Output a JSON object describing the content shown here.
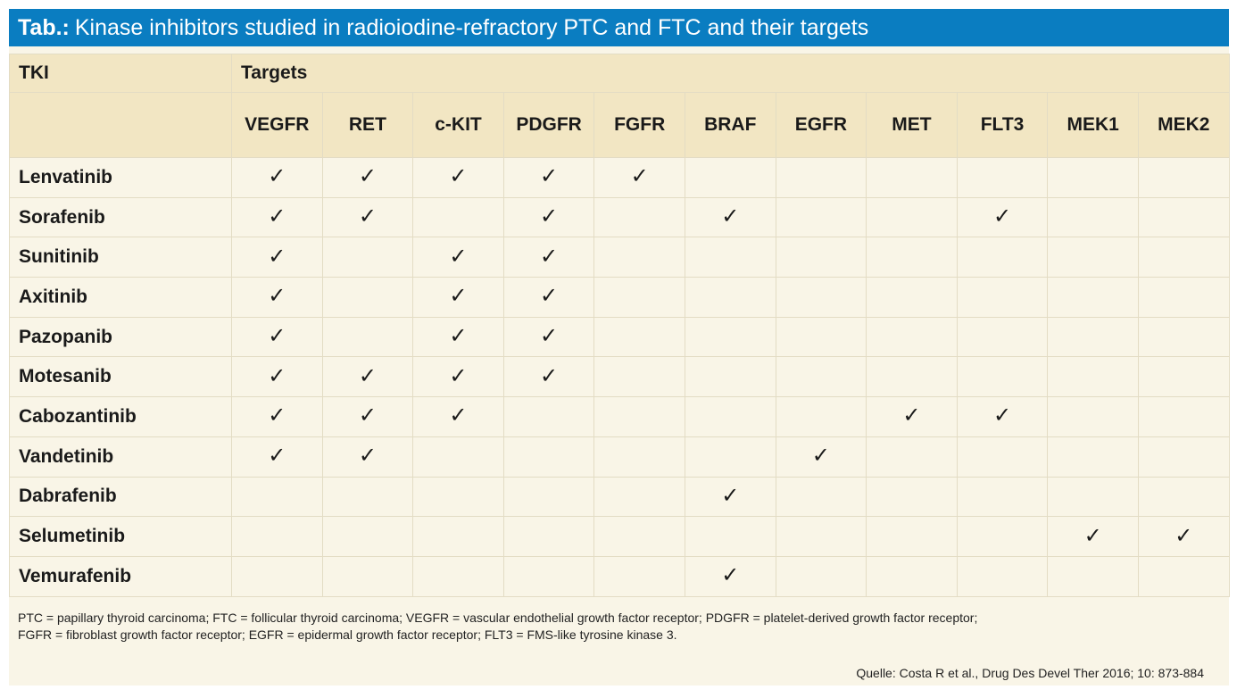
{
  "title": {
    "prefix": "Tab.:",
    "text": "Kinase inhibitors studied in radioiodine-refractory PTC and FTC and their targets"
  },
  "table": {
    "first_header": "TKI",
    "group_header": "Targets",
    "targets": [
      "VEGFR",
      "RET",
      "c-KIT",
      "PDGFR",
      "FGFR",
      "BRAF",
      "EGFR",
      "MET",
      "FLT3",
      "MEK1",
      "MEK2"
    ],
    "check_symbol": "✓",
    "rows": [
      {
        "name": "Lenvatinib",
        "checks": [
          1,
          1,
          1,
          1,
          1,
          0,
          0,
          0,
          0,
          0,
          0
        ]
      },
      {
        "name": "Sorafenib",
        "checks": [
          1,
          1,
          0,
          1,
          0,
          1,
          0,
          0,
          1,
          0,
          0
        ]
      },
      {
        "name": "Sunitinib",
        "checks": [
          1,
          0,
          1,
          1,
          0,
          0,
          0,
          0,
          0,
          0,
          0
        ]
      },
      {
        "name": "Axitinib",
        "checks": [
          1,
          0,
          1,
          1,
          0,
          0,
          0,
          0,
          0,
          0,
          0
        ]
      },
      {
        "name": "Pazopanib",
        "checks": [
          1,
          0,
          1,
          1,
          0,
          0,
          0,
          0,
          0,
          0,
          0
        ]
      },
      {
        "name": "Motesanib",
        "checks": [
          1,
          1,
          1,
          1,
          0,
          0,
          0,
          0,
          0,
          0,
          0
        ]
      },
      {
        "name": "Cabozantinib",
        "checks": [
          1,
          1,
          1,
          0,
          0,
          0,
          0,
          1,
          1,
          0,
          0
        ]
      },
      {
        "name": "Vandetinib",
        "checks": [
          1,
          1,
          0,
          0,
          0,
          0,
          1,
          0,
          0,
          0,
          0
        ]
      },
      {
        "name": "Dabrafenib",
        "checks": [
          0,
          0,
          0,
          0,
          0,
          1,
          0,
          0,
          0,
          0,
          0
        ]
      },
      {
        "name": "Selumetinib",
        "checks": [
          0,
          0,
          0,
          0,
          0,
          0,
          0,
          0,
          0,
          1,
          1
        ]
      },
      {
        "name": "Vemurafenib",
        "checks": [
          0,
          0,
          0,
          0,
          0,
          1,
          0,
          0,
          0,
          0,
          0
        ]
      }
    ]
  },
  "footnote": {
    "line1": "PTC = papillary thyroid carcinoma; FTC = follicular thyroid carcinoma; VEGFR = vascular endothelial growth factor receptor; PDGFR = platelet-derived growth factor receptor;",
    "line2": "FGFR = fibroblast growth factor receptor; EGFR = epidermal growth factor receptor; FLT3 = FMS-like tyrosine kinase 3."
  },
  "source": "Quelle: Costa R et al., Drug Des Devel Ther 2016; 10: 873-884"
}
